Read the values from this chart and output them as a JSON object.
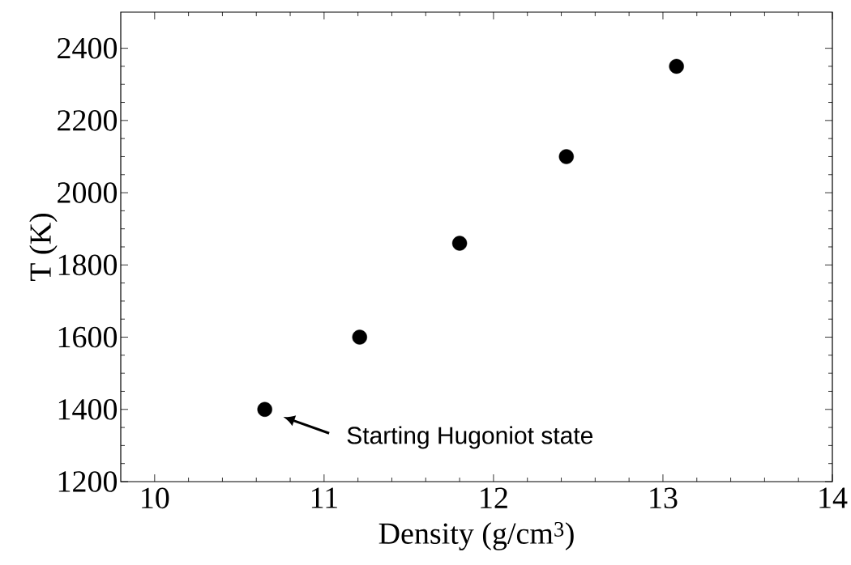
{
  "chart_data": {
    "type": "scatter",
    "xlabel": "Density (g/cm$^{3}$)",
    "ylabel": "T (K)",
    "x": [
      10.65,
      11.21,
      11.8,
      12.43,
      13.08
    ],
    "values": [
      1400,
      1600,
      1860,
      2100,
      2350
    ],
    "color": "#000000",
    "marker": "circle",
    "grid": false,
    "xlim": [
      9.8,
      14
    ],
    "ylim": [
      1200,
      2500
    ],
    "xticks": [
      10,
      11,
      12,
      13,
      14
    ],
    "yticks": [
      1200,
      1400,
      1600,
      1800,
      2000,
      2200,
      2400
    ],
    "annotations": [
      "Starting Hugoniot state"
    ]
  }
}
